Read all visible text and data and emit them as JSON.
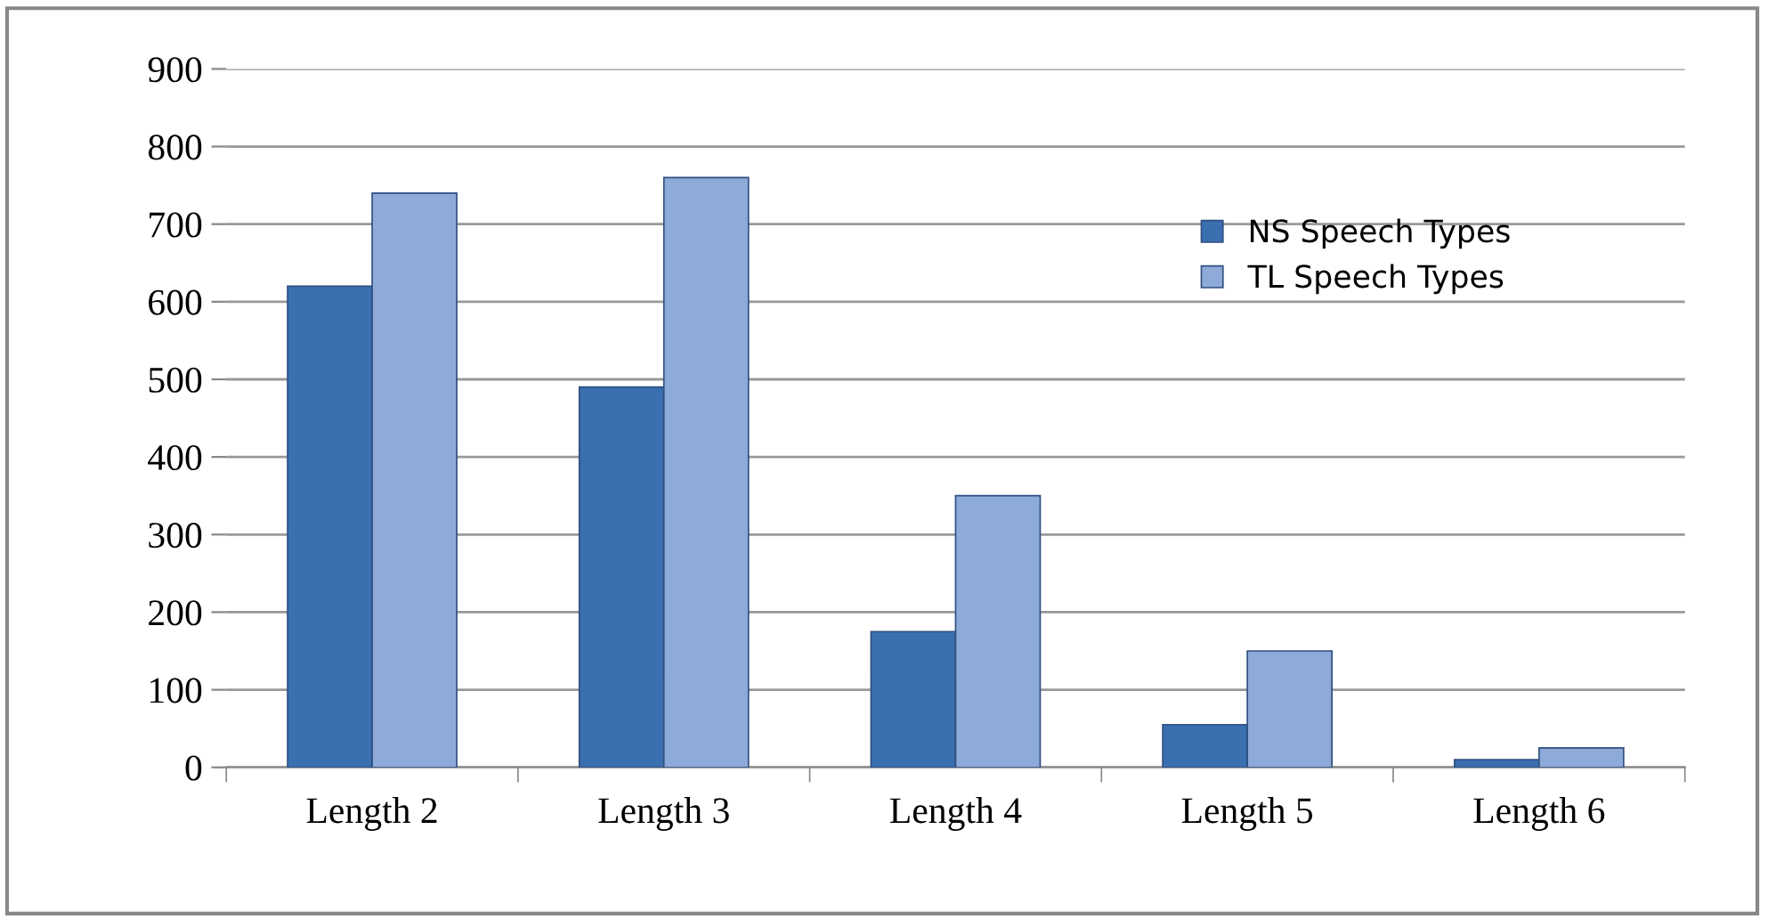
{
  "chart_data": {
    "type": "bar",
    "categories": [
      "Length 2",
      "Length 3",
      "Length 4",
      "Length 5",
      "Length 6"
    ],
    "series": [
      {
        "name": "NS Speech Types",
        "color": "#3a6fb0",
        "values": [
          620,
          490,
          175,
          55,
          10
        ]
      },
      {
        "name": "TL Speech Types",
        "color": "#8eaad8",
        "values": [
          740,
          760,
          350,
          150,
          25
        ]
      }
    ],
    "ylim": [
      0,
      900
    ],
    "yticks": [
      0,
      100,
      200,
      300,
      400,
      500,
      600,
      700,
      800,
      900
    ],
    "grid": "y",
    "legend": "top right"
  }
}
